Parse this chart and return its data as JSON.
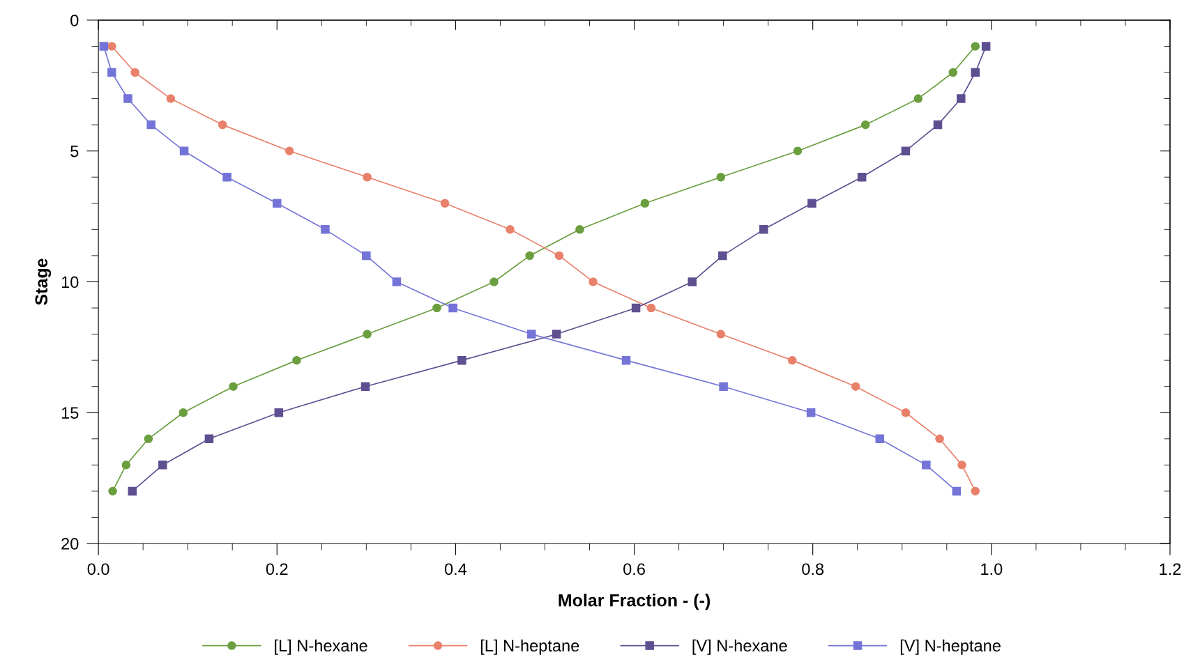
{
  "chart_data": {
    "type": "line",
    "orientation": "horizontal",
    "xlabel": "Molar Fraction - (-)",
    "ylabel": "Stage",
    "x": [
      1,
      2,
      3,
      4,
      5,
      6,
      7,
      8,
      9,
      10,
      11,
      12,
      13,
      14,
      15,
      16,
      17,
      18
    ],
    "series": [
      {
        "name": "[L] N-hexane",
        "color": "#6a9e3f",
        "marker": "circle",
        "values": [
          0.982,
          0.957,
          0.918,
          0.859,
          0.783,
          0.697,
          0.612,
          0.539,
          0.483,
          0.443,
          0.379,
          0.301,
          0.222,
          0.151,
          0.095,
          0.056,
          0.031,
          0.016
        ]
      },
      {
        "name": "[L] N-heptane",
        "color": "#e8806a",
        "marker": "circle",
        "values": [
          0.015,
          0.041,
          0.081,
          0.139,
          0.214,
          0.301,
          0.388,
          0.461,
          0.516,
          0.554,
          0.619,
          0.697,
          0.777,
          0.848,
          0.904,
          0.942,
          0.967,
          0.982
        ]
      },
      {
        "name": "[V] N-hexane",
        "color": "#5e4f91",
        "marker": "square",
        "values": [
          0.994,
          0.982,
          0.966,
          0.94,
          0.904,
          0.855,
          0.799,
          0.745,
          0.699,
          0.665,
          0.602,
          0.513,
          0.407,
          0.299,
          0.202,
          0.124,
          0.072,
          0.038
        ]
      },
      {
        "name": "[V] N-heptane",
        "color": "#7474d8",
        "marker": "square",
        "values": [
          0.006,
          0.015,
          0.033,
          0.059,
          0.096,
          0.144,
          0.2,
          0.254,
          0.3,
          0.334,
          0.397,
          0.485,
          0.591,
          0.7,
          0.798,
          0.875,
          0.927,
          0.961
        ]
      }
    ],
    "xlim": [
      0,
      1.2
    ],
    "xticks": [
      {
        "value": 0,
        "label": "0.0"
      },
      0.2,
      0.4,
      0.6,
      0.8,
      {
        "value": 1,
        "label": "1.0"
      },
      1.2
    ],
    "ylim": [
      20,
      0
    ],
    "yticks": [
      0,
      5,
      10,
      15,
      20
    ],
    "grid": false,
    "legend": "bottom"
  }
}
